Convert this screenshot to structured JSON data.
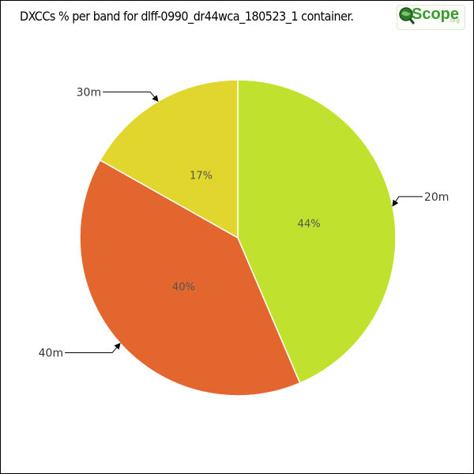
{
  "chart_data": {
    "type": "pie",
    "title": "DXCCs % per band for dlff-0990_dr44wca_180523_1 container.",
    "slices": [
      {
        "label": "20m",
        "value": 44,
        "percent_label": "44%",
        "color": "#c0e12e"
      },
      {
        "label": "40m",
        "value": 40,
        "percent_label": "40%",
        "color": "#e2662e"
      },
      {
        "label": "30m",
        "value": 17,
        "percent_label": "17%",
        "color": "#e0d62e"
      }
    ]
  },
  "logo": {
    "brand": "Scope",
    "suffix": ".org",
    "icon": "magnifier-globe-icon"
  }
}
